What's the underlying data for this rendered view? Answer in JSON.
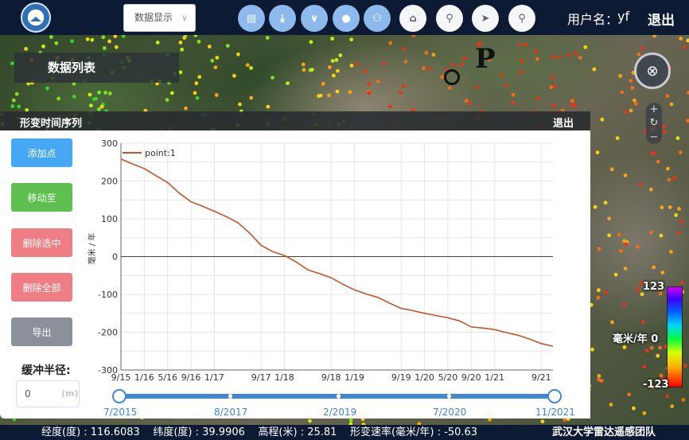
{
  "header": {
    "data_display_select": "数据显示",
    "username_label": "用户名：",
    "username": "yf",
    "logout": "退出",
    "toolbar_icons": [
      "layers-icon",
      "download-icon",
      "chevron-down-icon",
      "info-icon",
      "user-location-icon",
      "presentation-icon",
      "pin-icon",
      "navigate-icon",
      "search-icon"
    ]
  },
  "map": {
    "data_list_label": "数据列表",
    "marker_label": "P",
    "legend": {
      "top": "123",
      "middle": "毫米/年 0",
      "bottom": "-123"
    }
  },
  "panel": {
    "title": "形变时间序列",
    "exit": "退出",
    "buttons": {
      "add_point": "添加点",
      "move_to": "移动至",
      "delete_selected": "删除选中",
      "delete_all": "删除全部",
      "export": "导出"
    },
    "buffer": {
      "label": "缓冲半径:",
      "value": "0",
      "unit": "(m)"
    }
  },
  "chart_data": {
    "type": "line",
    "title": "",
    "ylabel": "毫米 / 年",
    "xlabel": "",
    "ylim": [
      -300,
      300
    ],
    "yticks": [
      "300",
      "200",
      "100",
      "0",
      "-100",
      "-200",
      "-300"
    ],
    "xticks": [
      "9/15",
      "1/16",
      "5/16",
      "9/16",
      "1/17",
      "9/17",
      "1/18",
      "9/18",
      "1/19",
      "9/19",
      "1/20",
      "5/20",
      "9/20",
      "1/21",
      "9/21"
    ],
    "grid": true,
    "legend": "top-left",
    "series": [
      {
        "name": "point:1",
        "color": "#c8532a",
        "x": [
          "2015-09",
          "2015-11",
          "2016-01",
          "2016-03",
          "2016-05",
          "2016-07",
          "2016-09",
          "2016-11",
          "2017-01",
          "2017-03",
          "2017-05",
          "2017-07",
          "2017-09",
          "2017-11",
          "2018-01",
          "2018-03",
          "2018-05",
          "2018-07",
          "2018-09",
          "2018-11",
          "2019-01",
          "2019-03",
          "2019-05",
          "2019-07",
          "2019-09",
          "2019-11",
          "2020-01",
          "2020-03",
          "2020-05",
          "2020-07",
          "2020-09",
          "2020-11",
          "2021-01",
          "2021-03",
          "2021-05",
          "2021-07",
          "2021-09",
          "2021-11"
        ],
        "values": [
          258,
          245,
          233,
          214,
          196,
          168,
          145,
          133,
          120,
          106,
          90,
          63,
          30,
          13,
          3,
          -14,
          -35,
          -45,
          -56,
          -73,
          -88,
          -99,
          -108,
          -123,
          -137,
          -143,
          -150,
          -156,
          -162,
          -170,
          -186,
          -189,
          -193,
          -201,
          -208,
          -218,
          -230,
          -237
        ]
      }
    ]
  },
  "time_slider": {
    "labels": [
      "7/2015",
      "8/2017",
      "2/2019",
      "7/2020",
      "11/2021"
    ]
  },
  "status": {
    "text": "经度(度) : 116.6083    纬度(度) : 39.9906    高程(米) : 25.81    形变速率(毫米/年) : -50.63",
    "team": "武汉大学雷达遥感团队"
  }
}
